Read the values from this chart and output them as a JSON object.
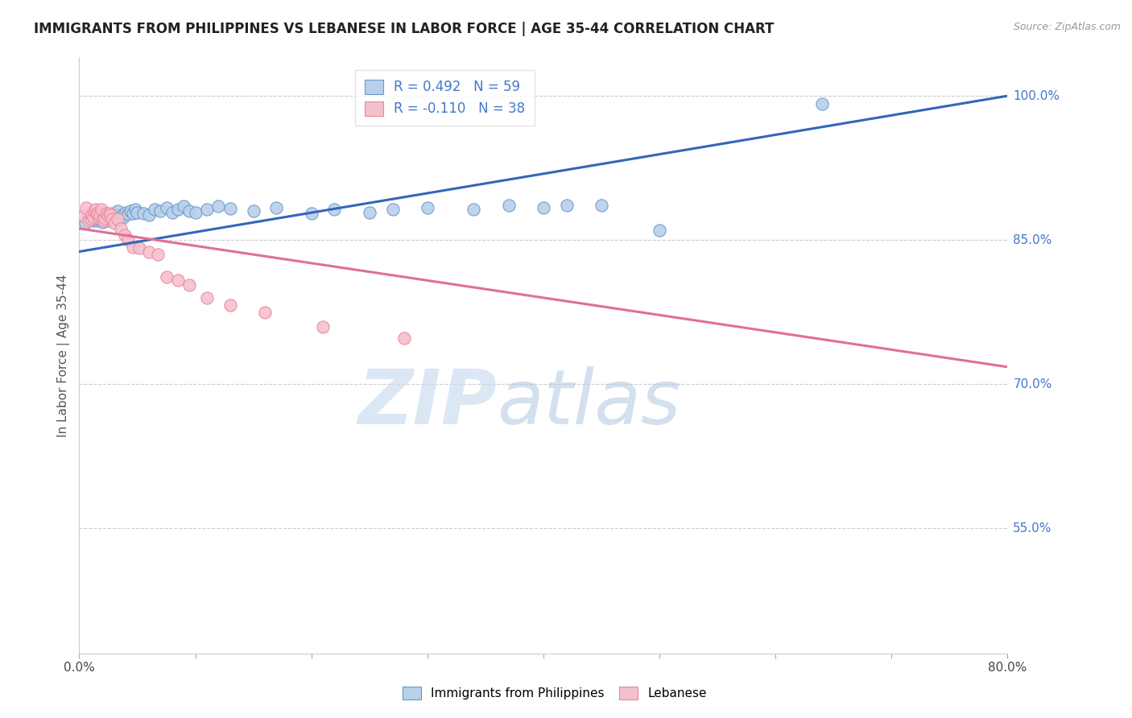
{
  "title": "IMMIGRANTS FROM PHILIPPINES VS LEBANESE IN LABOR FORCE | AGE 35-44 CORRELATION CHART",
  "source": "Source: ZipAtlas.com",
  "ylabel": "In Labor Force | Age 35-44",
  "ytick_labels": [
    "100.0%",
    "85.0%",
    "70.0%",
    "55.0%"
  ],
  "ytick_values": [
    1.0,
    0.85,
    0.7,
    0.55
  ],
  "xlim": [
    0.0,
    0.8
  ],
  "ylim": [
    0.42,
    1.04
  ],
  "legend_blue_r": "R = 0.492",
  "legend_blue_n": "N = 59",
  "legend_pink_r": "R = -0.110",
  "legend_pink_n": "N = 38",
  "legend_label_blue": "Immigrants from Philippines",
  "legend_label_pink": "Lebanese",
  "blue_face_color": "#b8d0ea",
  "blue_edge_color": "#6699cc",
  "blue_line_color": "#3366bb",
  "pink_face_color": "#f5c0ce",
  "pink_edge_color": "#e88899",
  "pink_line_color": "#e07090",
  "ytick_color": "#4477cc",
  "grid_color": "#cccccc",
  "background_color": "#ffffff",
  "blue_scatter_x": [
    0.005,
    0.008,
    0.01,
    0.012,
    0.013,
    0.015,
    0.015,
    0.017,
    0.018,
    0.019,
    0.02,
    0.021,
    0.022,
    0.023,
    0.024,
    0.025,
    0.026,
    0.027,
    0.028,
    0.029,
    0.03,
    0.031,
    0.033,
    0.035,
    0.037,
    0.038,
    0.04,
    0.042,
    0.044,
    0.046,
    0.048,
    0.05,
    0.055,
    0.06,
    0.065,
    0.07,
    0.075,
    0.08,
    0.085,
    0.09,
    0.095,
    0.1,
    0.11,
    0.12,
    0.13,
    0.15,
    0.17,
    0.2,
    0.22,
    0.25,
    0.27,
    0.3,
    0.34,
    0.37,
    0.4,
    0.42,
    0.45,
    0.5,
    0.64
  ],
  "blue_scatter_y": [
    0.868,
    0.875,
    0.872,
    0.87,
    0.873,
    0.87,
    0.874,
    0.871,
    0.876,
    0.878,
    0.869,
    0.872,
    0.871,
    0.874,
    0.876,
    0.87,
    0.873,
    0.875,
    0.872,
    0.874,
    0.878,
    0.876,
    0.88,
    0.872,
    0.876,
    0.874,
    0.879,
    0.877,
    0.88,
    0.878,
    0.882,
    0.879,
    0.878,
    0.876,
    0.882,
    0.88,
    0.884,
    0.879,
    0.882,
    0.885,
    0.88,
    0.879,
    0.882,
    0.885,
    0.883,
    0.88,
    0.884,
    0.878,
    0.882,
    0.879,
    0.882,
    0.884,
    0.882,
    0.886,
    0.884,
    0.886,
    0.886,
    0.86,
    0.992
  ],
  "pink_scatter_x": [
    0.004,
    0.006,
    0.008,
    0.01,
    0.011,
    0.012,
    0.013,
    0.014,
    0.015,
    0.016,
    0.017,
    0.018,
    0.019,
    0.02,
    0.021,
    0.022,
    0.023,
    0.025,
    0.026,
    0.027,
    0.028,
    0.03,
    0.033,
    0.036,
    0.039,
    0.042,
    0.046,
    0.052,
    0.06,
    0.068,
    0.075,
    0.085,
    0.095,
    0.11,
    0.13,
    0.16,
    0.21,
    0.28
  ],
  "pink_scatter_y": [
    0.875,
    0.884,
    0.87,
    0.872,
    0.876,
    0.874,
    0.88,
    0.882,
    0.878,
    0.876,
    0.873,
    0.875,
    0.882,
    0.871,
    0.87,
    0.873,
    0.878,
    0.875,
    0.878,
    0.876,
    0.872,
    0.868,
    0.872,
    0.862,
    0.855,
    0.85,
    0.843,
    0.842,
    0.838,
    0.835,
    0.812,
    0.808,
    0.803,
    0.79,
    0.782,
    0.775,
    0.76,
    0.748
  ],
  "blue_trendline_x": [
    0.0,
    0.8
  ],
  "blue_trendline_y": [
    0.838,
    1.0
  ],
  "pink_trendline_x": [
    0.0,
    0.8
  ],
  "pink_trendline_y": [
    0.862,
    0.718
  ],
  "watermark_zip": "ZIP",
  "watermark_atlas": "atlas",
  "xtick_positions": [
    0.0,
    0.1,
    0.2,
    0.3,
    0.4,
    0.5,
    0.6,
    0.7,
    0.8
  ],
  "xtick_labels_show": [
    "0.0%",
    "",
    "",
    "",
    "",
    "",
    "",
    "",
    "80.0%"
  ]
}
